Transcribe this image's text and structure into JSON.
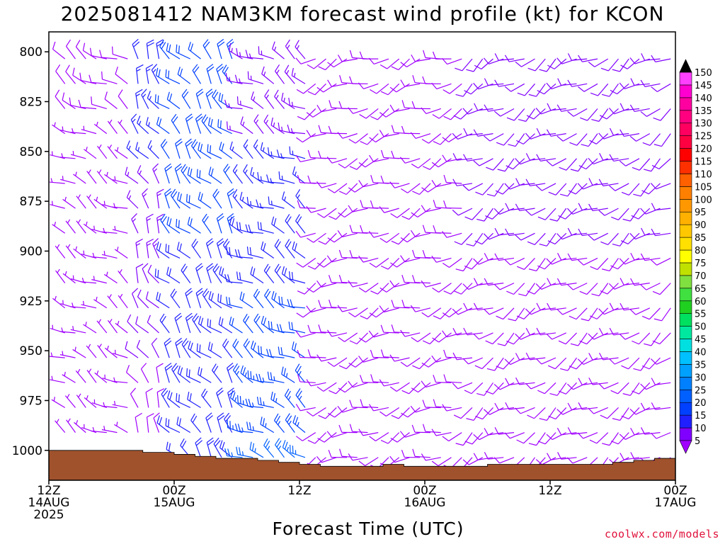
{
  "chart_data": {
    "type": "wind-barb-time-height",
    "title": "2025081412 NAM3KM forecast wind profile (kt) for KCON",
    "xlabel": "Forecast Time (UTC)",
    "ylabel": "",
    "y_axis": {
      "reversed": true,
      "range": [
        790,
        1015
      ],
      "ticks": [
        800,
        825,
        850,
        875,
        900,
        925,
        950,
        975,
        1000
      ]
    },
    "x_axis": {
      "range_hours": [
        0,
        60
      ],
      "ticks": [
        {
          "hour": 0,
          "line1": "12Z",
          "line2": "14AUG",
          "line3": "2025"
        },
        {
          "hour": 12,
          "line1": "00Z",
          "line2": "15AUG",
          "line3": ""
        },
        {
          "hour": 24,
          "line1": "12Z",
          "line2": "",
          "line3": ""
        },
        {
          "hour": 36,
          "line1": "00Z",
          "line2": "16AUG",
          "line3": ""
        },
        {
          "hour": 48,
          "line1": "12Z",
          "line2": "",
          "line3": ""
        },
        {
          "hour": 60,
          "line1": "00Z",
          "line2": "17AUG",
          "line3": ""
        }
      ]
    },
    "terrain_pressure": [
      {
        "hour": 0,
        "p": 1000
      },
      {
        "hour": 8.5,
        "p": 1000
      },
      {
        "hour": 9,
        "p": 1001
      },
      {
        "hour": 12,
        "p": 1002
      },
      {
        "hour": 14,
        "p": 1003
      },
      {
        "hour": 16,
        "p": 1004
      },
      {
        "hour": 20,
        "p": 1005
      },
      {
        "hour": 22,
        "p": 1006
      },
      {
        "hour": 24,
        "p": 1007
      },
      {
        "hour": 26,
        "p": 1008
      },
      {
        "hour": 30,
        "p": 1008
      },
      {
        "hour": 32,
        "p": 1007
      },
      {
        "hour": 34,
        "p": 1008
      },
      {
        "hour": 40,
        "p": 1008
      },
      {
        "hour": 42,
        "p": 1007
      },
      {
        "hour": 52,
        "p": 1007
      },
      {
        "hour": 54,
        "p": 1006
      },
      {
        "hour": 56,
        "p": 1005
      },
      {
        "hour": 58,
        "p": 1004
      },
      {
        "hour": 60,
        "p": 1003
      }
    ],
    "barb_levels": [
      800,
      812.5,
      825,
      837.5,
      850,
      862.5,
      875,
      887.5,
      900,
      912.5,
      925,
      937.5,
      950,
      962.5,
      975,
      987.5,
      1000
    ],
    "barb_regimes": [
      {
        "from_hour": 0,
        "to_hour": 8,
        "p_min": 790,
        "p_max": 1000,
        "dir": 300,
        "spd_top": 8,
        "spd_bot": 5
      },
      {
        "from_hour": 8,
        "to_hour": 11,
        "p_min": 790,
        "p_max": 1000,
        "dir": 330,
        "spd_top": 18,
        "spd_bot": 8
      },
      {
        "from_hour": 11,
        "to_hour": 18,
        "p_min": 790,
        "p_max": 960,
        "dir": 320,
        "spd_top": 22,
        "spd_bot": 18
      },
      {
        "from_hour": 18,
        "to_hour": 25,
        "p_min": 790,
        "p_max": 1005,
        "dir": 300,
        "spd_top": 12,
        "spd_bot": 25
      },
      {
        "from_hour": 25,
        "to_hour": 40,
        "p_min": 790,
        "p_max": 1008,
        "dir": 250,
        "spd_top": 10,
        "spd_bot": 8
      },
      {
        "from_hour": 40,
        "to_hour": 60,
        "p_min": 790,
        "p_max": 1008,
        "dir": 240,
        "spd_top": 12,
        "spd_bot": 8
      }
    ],
    "colorbar": {
      "levels": [
        5,
        10,
        15,
        20,
        25,
        30,
        35,
        40,
        45,
        50,
        55,
        60,
        65,
        70,
        75,
        80,
        85,
        90,
        95,
        100,
        105,
        110,
        115,
        120,
        125,
        130,
        135,
        140,
        145,
        150
      ],
      "colors": [
        "#a000ff",
        "#8000ff",
        "#2020ff",
        "#0040ff",
        "#0060ff",
        "#0080ff",
        "#00a0ff",
        "#00c0ff",
        "#00e0e0",
        "#00e8a0",
        "#00e060",
        "#20d020",
        "#40e040",
        "#80e040",
        "#c0e000",
        "#ffff00",
        "#ffe000",
        "#ffc800",
        "#ffb000",
        "#ff9800",
        "#ff8000",
        "#ff6000",
        "#ff3000",
        "#ff0000",
        "#ff0040",
        "#ff0060",
        "#ff0080",
        "#ff00a0",
        "#ff00d0",
        "#ff40ff"
      ],
      "top_arrow_color": "#000000",
      "bottom_arrow_color": "#a000ff"
    },
    "terrain_color": "#a0522d",
    "credit": "coolwx.com/models"
  }
}
